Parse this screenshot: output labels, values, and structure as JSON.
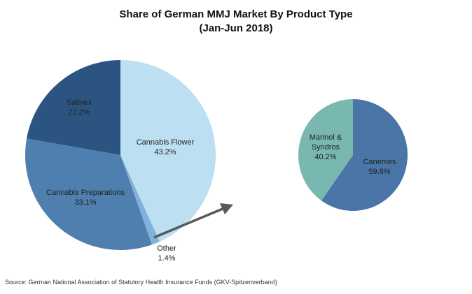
{
  "chart_data": [
    {
      "type": "pie",
      "title": "Share of German MMJ Market By Product Type",
      "subtitle": "(Jan-Jun 2018)",
      "slices": [
        {
          "label": "Cannabis Flower",
          "value": 43.2,
          "display": "43.2%",
          "color": "#bcdff2"
        },
        {
          "label": "Other",
          "value": 1.4,
          "display": "1.4%",
          "color": "#80b1d9"
        },
        {
          "label": "Cannabis Preparations",
          "value": 33.1,
          "display": "33.1%",
          "color": "#4e7fae"
        },
        {
          "label": "Sativex",
          "value": 22.2,
          "display": "22.2%",
          "color": "#2b5580"
        }
      ]
    },
    {
      "type": "pie",
      "slices": [
        {
          "label": "Canemes",
          "value": 59.8,
          "display": "59.8%",
          "color": "#4a76a7"
        },
        {
          "label": "Marinol & Syndros",
          "value": 40.2,
          "display": "40.2%",
          "color": "#79b8b0"
        }
      ]
    }
  ],
  "title_line1": "Share of German MMJ Market By Product Type",
  "title_line2": "(Jan-Jun 2018)",
  "source": "Source: German National Association of Statutory Health Insurance Funds (GKV-Spitzenverband)",
  "arrow_color": "#595959"
}
